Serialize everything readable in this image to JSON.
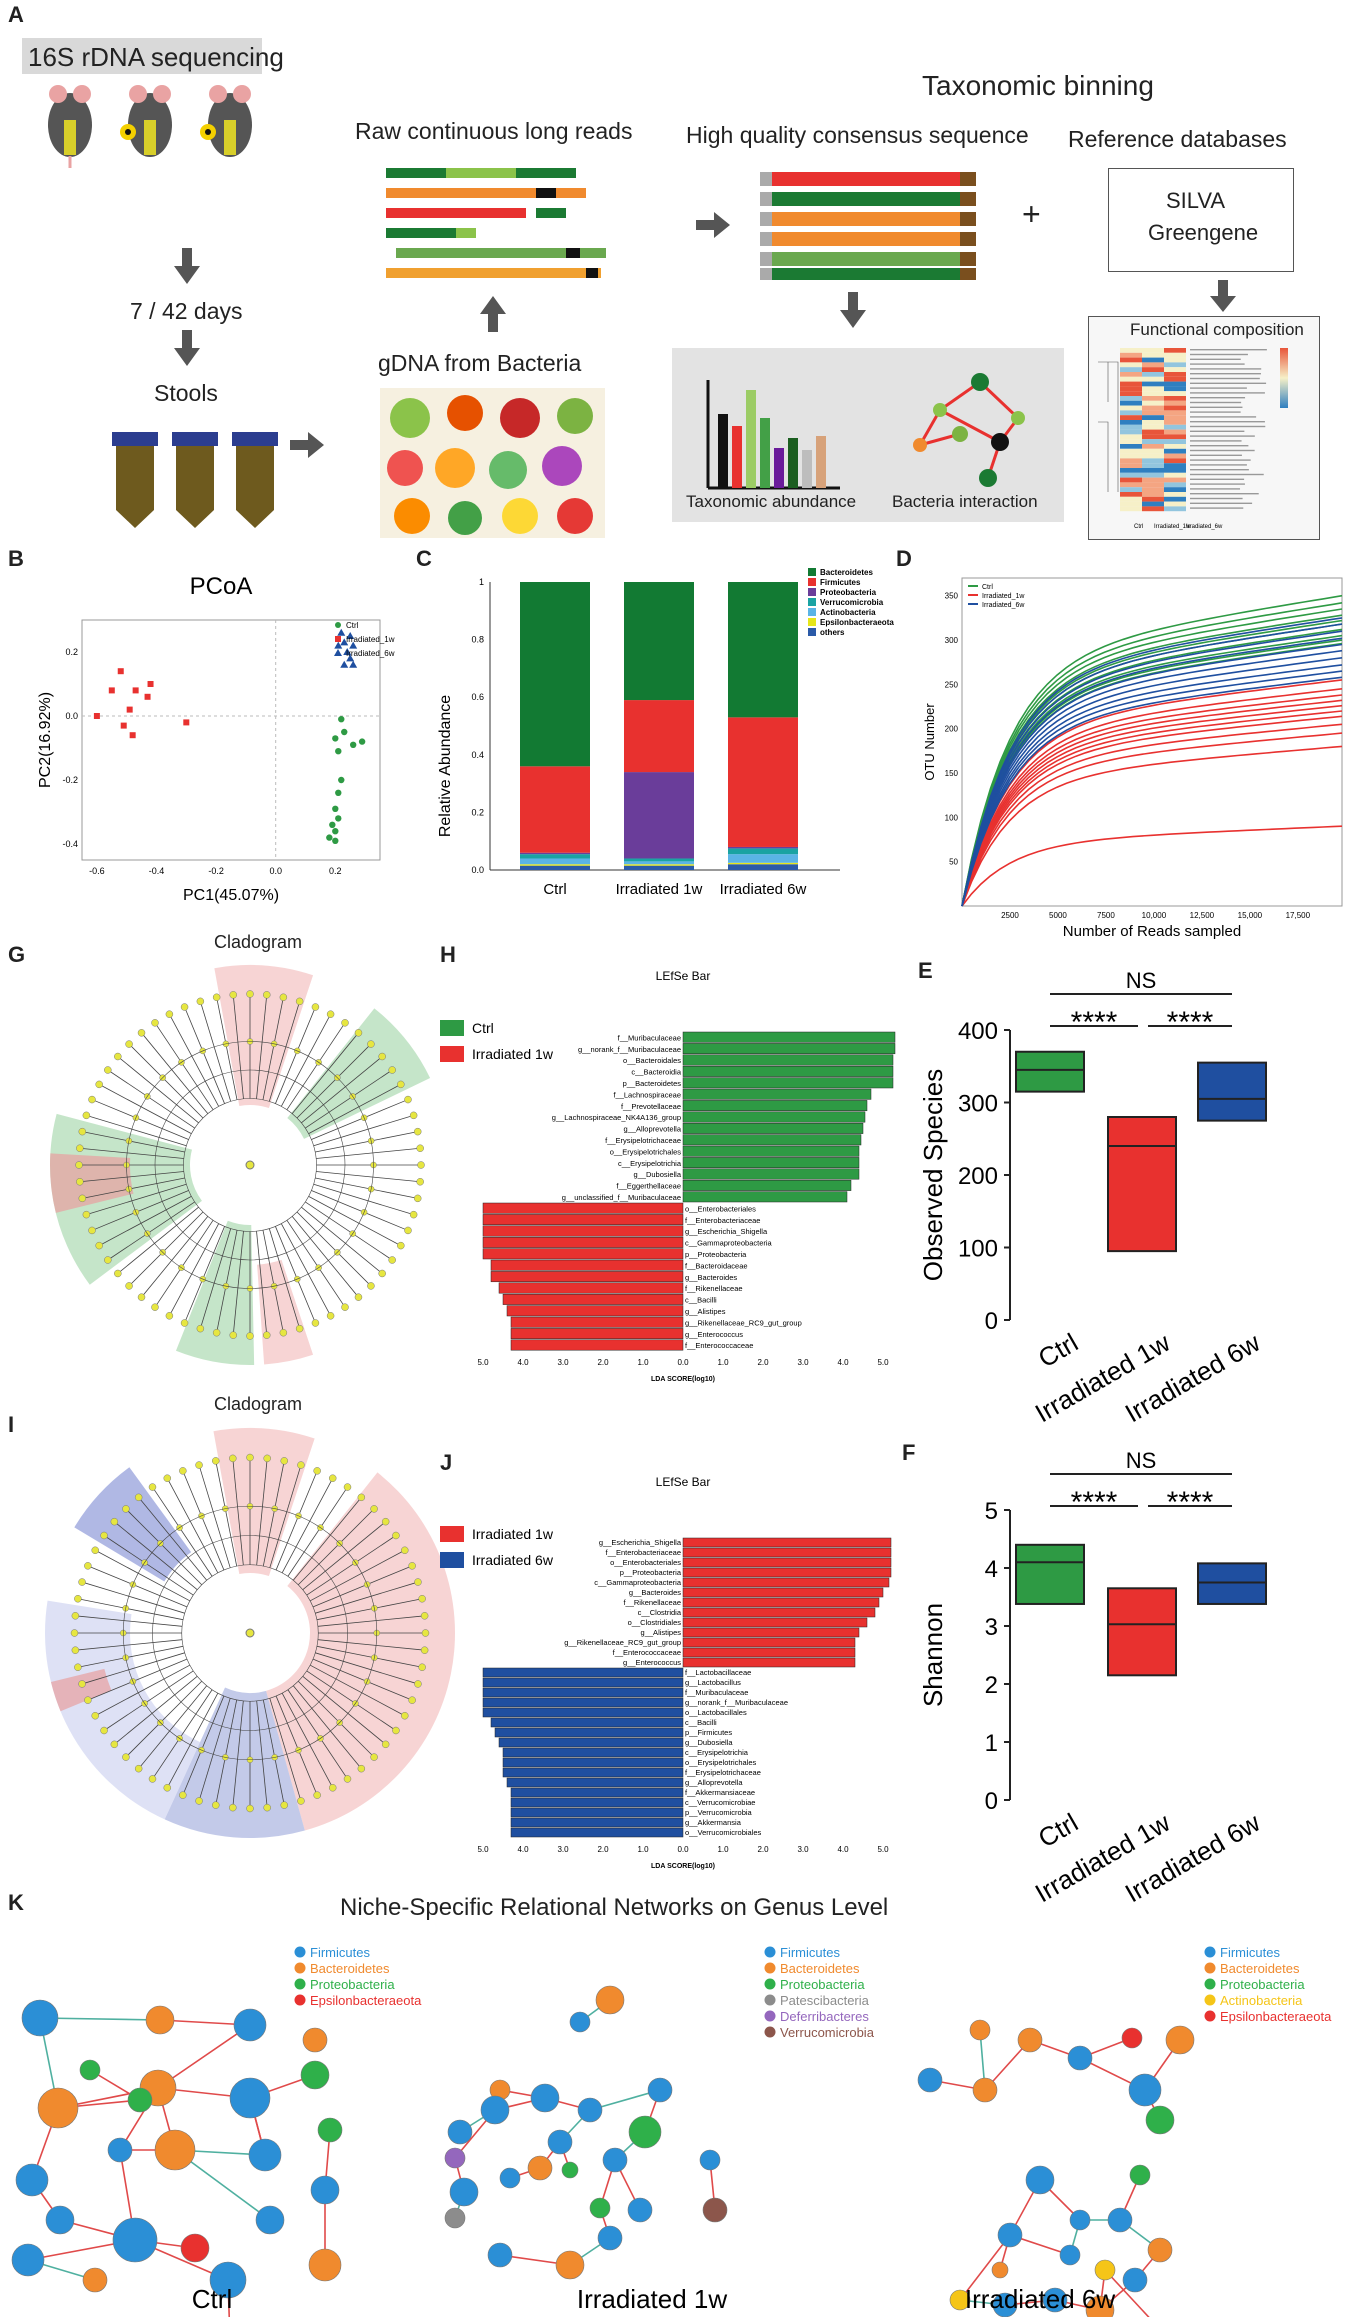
{
  "labels": {
    "A": "A",
    "B": "B",
    "C": "C",
    "D": "D",
    "E": "E",
    "F": "F",
    "G": "G",
    "H": "H",
    "I": "I",
    "J": "J",
    "K": "K"
  },
  "panelA": {
    "seq": "16S rDNA sequencing",
    "days": "7 / 42 days",
    "stools": "Stools",
    "raw": "Raw continuous long reads",
    "gdna": "gDNA from Bacteria",
    "binning": "Taxonomic binning",
    "consensus": "High quality consensus sequence",
    "refdb": "Reference databases",
    "silva": "SILVA",
    "greengene": "Greengene",
    "plus": "+",
    "functional": "Functional composition",
    "tax_abundance": "Taxonomic abundance",
    "bact_inter": "Bacteria interaction",
    "heat_cols": [
      "Ctrl",
      "Irradiated_1w",
      "Irradiated_6w"
    ]
  },
  "colors": {
    "ctrl": "#2e9a44",
    "ir1": "#e8312f",
    "ir6": "#1f4fa0",
    "green_dark": "#0f7a34"
  },
  "chart_data": [
    {
      "id": "B",
      "type": "scatter",
      "title": "PCoA",
      "xlabel": "PC1(45.07%)",
      "ylabel": "PC2(16.92%)",
      "xlim": [
        -0.65,
        0.35
      ],
      "ylim": [
        -0.45,
        0.3
      ],
      "xticks": [
        -0.6,
        -0.4,
        -0.2,
        0.0,
        0.2
      ],
      "yticks": [
        -0.4,
        -0.2,
        0.0,
        0.2
      ],
      "xticklabels": [
        "-0.6",
        "-0.4",
        "-0.2",
        "0.0",
        "0.2"
      ],
      "yticklabels": [
        "-0.4",
        "-0.2",
        "0.0",
        "0.2"
      ],
      "legend": [
        "Ctrl",
        "Irradiated_1w",
        "Irradiated_6w"
      ],
      "series": [
        {
          "name": "Ctrl",
          "points": [
            [
              0.22,
              -0.01
            ],
            [
              0.23,
              -0.05
            ],
            [
              0.2,
              -0.07
            ],
            [
              0.26,
              -0.09
            ],
            [
              0.21,
              -0.11
            ],
            [
              0.22,
              -0.2
            ],
            [
              0.21,
              -0.24
            ],
            [
              0.2,
              -0.29
            ],
            [
              0.21,
              -0.32
            ],
            [
              0.19,
              -0.34
            ],
            [
              0.2,
              -0.36
            ],
            [
              0.18,
              -0.38
            ],
            [
              0.2,
              -0.39
            ],
            [
              0.29,
              -0.08
            ]
          ]
        },
        {
          "name": "Irradiated_1w",
          "points": [
            [
              -0.52,
              0.14
            ],
            [
              -0.42,
              0.1
            ],
            [
              -0.47,
              0.08
            ],
            [
              -0.55,
              0.08
            ],
            [
              -0.43,
              0.06
            ],
            [
              -0.6,
              0.0
            ],
            [
              -0.49,
              0.02
            ],
            [
              -0.51,
              -0.03
            ],
            [
              -0.48,
              -0.06
            ],
            [
              -0.3,
              -0.02
            ]
          ]
        },
        {
          "name": "Irradiated_6w",
          "points": [
            [
              0.22,
              0.26
            ],
            [
              0.25,
              0.25
            ],
            [
              0.23,
              0.23
            ],
            [
              0.26,
              0.22
            ],
            [
              0.21,
              0.22
            ],
            [
              0.24,
              0.2
            ],
            [
              0.25,
              0.18
            ],
            [
              0.26,
              0.16
            ],
            [
              0.23,
              0.16
            ]
          ]
        }
      ]
    },
    {
      "id": "C",
      "type": "bar",
      "stacked": true,
      "ylabel": "Relative Abundance",
      "ylim": [
        0,
        1
      ],
      "yticks": [
        0,
        0.2,
        0.4,
        0.6,
        0.8,
        1.0
      ],
      "yticklabels": [
        "0.0",
        "0.2",
        "0.4",
        "0.6",
        "0.8",
        "1"
      ],
      "categories": [
        "Ctrl",
        "Irradiated 1w",
        "Irradiated 6w"
      ],
      "series": [
        {
          "name": "Bacteroidetes",
          "color": "#127a33",
          "values": [
            0.64,
            0.41,
            0.47
          ]
        },
        {
          "name": "Firmicutes",
          "color": "#e8312f",
          "values": [
            0.3,
            0.25,
            0.45
          ]
        },
        {
          "name": "Proteobacteria",
          "color": "#6a3d9a",
          "values": [
            0.005,
            0.3,
            0.005
          ]
        },
        {
          "name": "Verrucomicrobia",
          "color": "#1aa3a3",
          "values": [
            0.015,
            0.01,
            0.02
          ]
        },
        {
          "name": "Actinobacteria",
          "color": "#5ab4e6",
          "values": [
            0.02,
            0.01,
            0.03
          ]
        },
        {
          "name": "Epsilonbacteraeota",
          "color": "#e6e61a",
          "values": [
            0.005,
            0.005,
            0.005
          ]
        },
        {
          "name": "others",
          "color": "#2b5aa8",
          "values": [
            0.015,
            0.015,
            0.02
          ]
        }
      ]
    },
    {
      "id": "D",
      "type": "line",
      "xlabel": "Number of Reads sampled",
      "ylabel": "OTU Number",
      "xlim": [
        0,
        19800
      ],
      "ylim": [
        0,
        370
      ],
      "xticks": [
        2500,
        5000,
        7500,
        10000,
        12500,
        15000,
        17500
      ],
      "xticklabels": [
        "2500",
        "5000",
        "7500",
        "10,000",
        "12,500",
        "15,000",
        "17,500"
      ],
      "yticks": [
        50,
        100,
        150,
        200,
        250,
        300,
        350
      ],
      "yticklabels": [
        "50",
        "100",
        "150",
        "200",
        "250",
        "300",
        "350"
      ],
      "legend": [
        "Ctrl",
        "Irradiated_1w",
        "Irradiated_6w"
      ],
      "series": [
        {
          "name": "Ctrl",
          "color": "#2e9a44",
          "final": [
            350,
            342,
            335,
            328,
            322,
            318,
            312,
            305,
            300,
            296
          ]
        },
        {
          "name": "Irradiated_1w",
          "color": "#e8312f",
          "final": [
            255,
            245,
            238,
            232,
            226,
            220,
            214,
            205,
            195,
            180,
            90
          ]
        },
        {
          "name": "Irradiated_6w",
          "color": "#1f4fa0",
          "final": [
            325,
            318,
            310,
            302,
            295,
            288,
            280,
            272,
            265,
            258
          ]
        }
      ]
    },
    {
      "id": "E",
      "type": "box",
      "ylabel": "Observed  Species",
      "ylim": [
        0,
        400
      ],
      "yticks": [
        0,
        100,
        200,
        300,
        400
      ],
      "yticklabels": [
        "0",
        "100",
        "200",
        "300",
        "400"
      ],
      "categories": [
        "Ctrl",
        "Irradiated 1w",
        "Irradiated 6w"
      ],
      "boxes": [
        {
          "low": 315,
          "high": 370,
          "median": 345
        },
        {
          "low": 95,
          "high": 280,
          "median": 240
        },
        {
          "low": 275,
          "high": 355,
          "median": 305
        }
      ],
      "significance": [
        {
          "from": 0,
          "to": 2,
          "label": "NS"
        },
        {
          "from": 0,
          "to": 1,
          "label": "****"
        },
        {
          "from": 1,
          "to": 2,
          "label": "****"
        }
      ]
    },
    {
      "id": "F",
      "type": "box",
      "ylabel": "Shannon",
      "ylim": [
        0,
        5
      ],
      "yticks": [
        0,
        1,
        2,
        3,
        4,
        5
      ],
      "yticklabels": [
        "0",
        "1",
        "2",
        "3",
        "4",
        "5"
      ],
      "categories": [
        "Ctrl",
        "Irradiated 1w",
        "Irradiated 6w"
      ],
      "boxes": [
        {
          "low": 3.38,
          "high": 4.4,
          "median": 4.1
        },
        {
          "low": 2.15,
          "high": 3.65,
          "median": 3.03
        },
        {
          "low": 3.38,
          "high": 4.08,
          "median": 3.75
        }
      ],
      "significance": [
        {
          "from": 0,
          "to": 2,
          "label": "NS"
        },
        {
          "from": 0,
          "to": 1,
          "label": "****"
        },
        {
          "from": 1,
          "to": 2,
          "label": "****"
        }
      ]
    },
    {
      "id": "H",
      "type": "bar",
      "orientation": "horizontal",
      "title": "LEfSe Bar",
      "xlabel": "LDA SCORE(log10)",
      "xticklabels": [
        "5.0",
        "4.0",
        "3.0",
        "2.0",
        "1.0",
        "0.0",
        "1.0",
        "2.0",
        "3.0",
        "4.0",
        "5.0"
      ],
      "legend": [
        "Ctrl",
        "Irradiated 1w"
      ],
      "groups": [
        {
          "name": "Ctrl",
          "color": "#2e9a44",
          "side": "right",
          "labels": [
            "f__Muribaculaceae",
            "g__norank_f__Muribaculaceae",
            "o__Bacteroidales",
            "c__Bacteroidia",
            "p__Bacteroidetes",
            "f__Lachnospiraceae",
            "f__Prevotellaceae",
            "g__Lachnospiraceae_NK4A136_group",
            "g__Alloprevotella",
            "f__Erysipelotrichaceae",
            "o__Erysipelotrichales",
            "c__Erysipelotrichia",
            "g__Dubosiella",
            "f__Eggerthellaceae",
            "g__unclassified_f__Muribaculaceae"
          ],
          "values": [
            5.3,
            5.3,
            5.25,
            5.25,
            5.25,
            4.7,
            4.6,
            4.55,
            4.5,
            4.45,
            4.4,
            4.4,
            4.4,
            4.2,
            4.1
          ]
        },
        {
          "name": "Irradiated 1w",
          "color": "#e8312f",
          "side": "left",
          "labels": [
            "o__Enterobacteriales",
            "f__Enterobacteriaceae",
            "g__Escherichia_Shigella",
            "c__Gammaproteobacteria",
            "p__Proteobacteria",
            "f__Bacteroidaceae",
            "g__Bacteroides",
            "f__Rikenellaceae",
            "c__Bacilli",
            "g__Alistipes",
            "g__Rikenellaceae_RC9_gut_group",
            "g__Enterococcus",
            "f__Enterococcaceae"
          ],
          "values": [
            5.0,
            5.0,
            5.0,
            5.0,
            5.0,
            4.8,
            4.8,
            4.6,
            4.5,
            4.4,
            4.3,
            4.3,
            4.3
          ]
        }
      ]
    },
    {
      "id": "J",
      "type": "bar",
      "orientation": "horizontal",
      "title": "LEfSe Bar",
      "xlabel": "LDA SCORE(log10)",
      "xticklabels": [
        "5.0",
        "4.0",
        "3.0",
        "2.0",
        "1.0",
        "0.0",
        "1.0",
        "2.0",
        "3.0",
        "4.0",
        "5.0"
      ],
      "legend": [
        "Irradiated 1w",
        "Irradiated 6w"
      ],
      "groups": [
        {
          "name": "Irradiated 1w",
          "color": "#e8312f",
          "side": "right",
          "labels": [
            "g__Escherichia_Shigella",
            "f__Enterobacteriaceae",
            "o__Enterobacteriales",
            "p__Proteobacteria",
            "c__Gammaproteobacteria",
            "g__Bacteroides",
            "f__Rikenellaceae",
            "c__Clostridia",
            "o__Clostridiales",
            "g__Alistipes",
            "g__Rikenellaceae_RC9_gut_group",
            "f__Enterococcaceae",
            "g__Enterococcus"
          ],
          "values": [
            5.2,
            5.2,
            5.2,
            5.2,
            5.15,
            5.0,
            4.9,
            4.8,
            4.6,
            4.4,
            4.3,
            4.3,
            4.3
          ]
        },
        {
          "name": "Irradiated 6w",
          "color": "#1f4fa0",
          "side": "left",
          "labels": [
            "f__Lactobacillaceae",
            "g__Lactobacillus",
            "f__Muribaculaceae",
            "g__norank_f__Muribaculaceae",
            "o__Lactobacillales",
            "c__Bacilli",
            "p__Firmicutes",
            "g__Dubosiella",
            "c__Erysipelotrichia",
            "o__Erysipelotrichales",
            "f__Erysipelotrichaceae",
            "g__Alloprevotella",
            "f__Akkermansiaceae",
            "c__Verrucomicrobiae",
            "p__Verrucomicrobia",
            "g__Akkermansia",
            "o__Verrucomicrobiales"
          ],
          "values": [
            5.0,
            5.0,
            5.0,
            5.0,
            5.0,
            4.8,
            4.7,
            4.6,
            4.5,
            4.5,
            4.5,
            4.4,
            4.3,
            4.3,
            4.3,
            4.3,
            4.3
          ]
        }
      ]
    }
  ],
  "panelG": {
    "title": "Cladogram"
  },
  "panelI": {
    "title": "Cladogram"
  },
  "panelK": {
    "title": "Niche-Specific Relational Networks  on Genus Level",
    "networks": [
      {
        "name": "Ctrl",
        "legend": [
          {
            "label": "Firmicutes",
            "color": "#2b8fd6"
          },
          {
            "label": "Bacteroidetes",
            "color": "#f08a2e"
          },
          {
            "label": "Proteobacteria",
            "color": "#2fb04a"
          },
          {
            "label": "Epsilonbacteraeota",
            "color": "#e8312f"
          }
        ]
      },
      {
        "name": "Irradiated 1w",
        "legend": [
          {
            "label": "Firmicutes",
            "color": "#2b8fd6"
          },
          {
            "label": "Bacteroidetes",
            "color": "#f08a2e"
          },
          {
            "label": "Proteobacteria",
            "color": "#2fb04a"
          },
          {
            "label": "Patescibacteria",
            "color": "#8c8c8c"
          },
          {
            "label": "Deferribacteres",
            "color": "#9467bd"
          },
          {
            "label": "Verrucomicrobia",
            "color": "#8c564b"
          }
        ]
      },
      {
        "name": "Irradiated 6w",
        "legend": [
          {
            "label": "Firmicutes",
            "color": "#2b8fd6"
          },
          {
            "label": "Bacteroidetes",
            "color": "#f08a2e"
          },
          {
            "label": "Proteobacteria",
            "color": "#2fb04a"
          },
          {
            "label": "Actinobacteria",
            "color": "#f5c518"
          },
          {
            "label": "Epsilonbacteraeota",
            "color": "#e8312f"
          }
        ]
      }
    ]
  }
}
